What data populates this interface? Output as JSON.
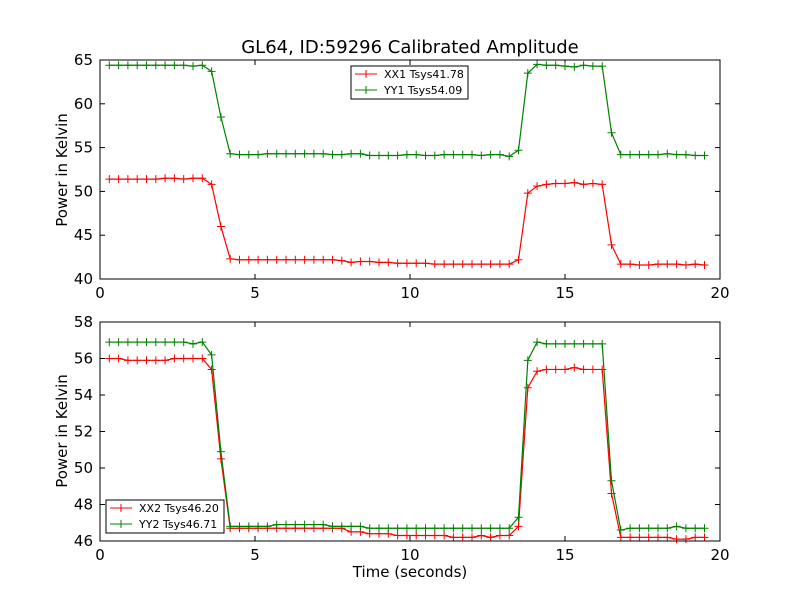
{
  "title": "GL64, ID:59296 Calibrated Amplitude",
  "colors": {
    "red": "#ff0000",
    "green": "#008000"
  },
  "chart_data": [
    {
      "type": "line",
      "ylabel": "Power in Kelvin",
      "xlabel": "",
      "xlim": [
        0,
        20
      ],
      "ylim": [
        40,
        65
      ],
      "xticks": [
        "0",
        "5",
        "10",
        "15",
        "20"
      ],
      "yticks": [
        "40",
        "45",
        "50",
        "55",
        "60",
        "65"
      ],
      "legend": "top-center",
      "x": [
        0.3,
        0.6,
        0.9,
        1.2,
        1.5,
        1.8,
        2.1,
        2.4,
        2.7,
        3.0,
        3.3,
        3.6,
        3.9,
        4.2,
        4.5,
        4.8,
        5.1,
        5.4,
        5.7,
        6.0,
        6.3,
        6.6,
        6.9,
        7.2,
        7.5,
        7.8,
        8.1,
        8.4,
        8.7,
        9.0,
        9.3,
        9.6,
        9.9,
        10.2,
        10.5,
        10.8,
        11.1,
        11.4,
        11.7,
        12.0,
        12.3,
        12.6,
        12.9,
        13.2,
        13.5,
        13.8,
        14.1,
        14.4,
        14.7,
        15.0,
        15.3,
        15.6,
        15.9,
        16.2,
        16.5,
        16.8,
        17.1,
        17.4,
        17.7,
        18.0,
        18.3,
        18.6,
        18.9,
        19.2,
        19.5
      ],
      "series": [
        {
          "name": "XX1 Tsys41.78",
          "color": "#ff0000",
          "values": [
            51.4,
            51.4,
            51.4,
            51.4,
            51.4,
            51.4,
            51.5,
            51.5,
            51.4,
            51.5,
            51.5,
            50.8,
            46.0,
            42.3,
            42.2,
            42.2,
            42.2,
            42.2,
            42.2,
            42.2,
            42.2,
            42.2,
            42.2,
            42.2,
            42.2,
            42.1,
            41.9,
            42.0,
            42.0,
            41.9,
            41.9,
            41.8,
            41.8,
            41.8,
            41.8,
            41.7,
            41.7,
            41.7,
            41.7,
            41.7,
            41.7,
            41.7,
            41.7,
            41.7,
            42.2,
            49.8,
            50.6,
            50.8,
            50.9,
            50.9,
            51.0,
            50.8,
            50.9,
            50.8,
            43.9,
            41.7,
            41.7,
            41.6,
            41.6,
            41.7,
            41.7,
            41.7,
            41.6,
            41.7,
            41.6
          ]
        },
        {
          "name": "YY1 Tsys54.09",
          "color": "#008000",
          "values": [
            64.4,
            64.4,
            64.4,
            64.4,
            64.4,
            64.4,
            64.4,
            64.4,
            64.4,
            64.3,
            64.4,
            63.7,
            58.5,
            54.3,
            54.2,
            54.2,
            54.2,
            54.3,
            54.3,
            54.3,
            54.3,
            54.3,
            54.3,
            54.3,
            54.2,
            54.2,
            54.3,
            54.3,
            54.1,
            54.1,
            54.1,
            54.1,
            54.2,
            54.2,
            54.1,
            54.1,
            54.2,
            54.2,
            54.2,
            54.2,
            54.1,
            54.2,
            54.2,
            54.0,
            54.7,
            63.5,
            64.5,
            64.4,
            64.4,
            64.3,
            64.2,
            64.4,
            64.3,
            64.3,
            56.7,
            54.2,
            54.2,
            54.2,
            54.2,
            54.2,
            54.3,
            54.2,
            54.2,
            54.1,
            54.1
          ]
        }
      ]
    },
    {
      "type": "line",
      "ylabel": "Power in Kelvin",
      "xlabel": "Time (seconds)",
      "xlim": [
        0,
        20
      ],
      "ylim": [
        46,
        58
      ],
      "xticks": [
        "0",
        "5",
        "10",
        "15",
        "20"
      ],
      "yticks": [
        "46",
        "48",
        "50",
        "52",
        "54",
        "56",
        "58"
      ],
      "legend": "lower-left",
      "x": [
        0.3,
        0.6,
        0.9,
        1.2,
        1.5,
        1.8,
        2.1,
        2.4,
        2.7,
        3.0,
        3.3,
        3.6,
        3.9,
        4.2,
        4.5,
        4.8,
        5.1,
        5.4,
        5.7,
        6.0,
        6.3,
        6.6,
        6.9,
        7.2,
        7.5,
        7.8,
        8.1,
        8.4,
        8.7,
        9.0,
        9.3,
        9.6,
        9.9,
        10.2,
        10.5,
        10.8,
        11.1,
        11.4,
        11.7,
        12.0,
        12.3,
        12.6,
        12.9,
        13.2,
        13.5,
        13.8,
        14.1,
        14.4,
        14.7,
        15.0,
        15.3,
        15.6,
        15.9,
        16.2,
        16.5,
        16.8,
        17.1,
        17.4,
        17.7,
        18.0,
        18.3,
        18.6,
        18.9,
        19.2,
        19.5
      ],
      "series": [
        {
          "name": "XX2 Tsys46.20",
          "color": "#ff0000",
          "values": [
            56.0,
            56.0,
            55.9,
            55.9,
            55.9,
            55.9,
            55.9,
            56.0,
            56.0,
            56.0,
            56.0,
            55.4,
            50.5,
            46.7,
            46.7,
            46.7,
            46.7,
            46.7,
            46.7,
            46.7,
            46.7,
            46.7,
            46.7,
            46.7,
            46.7,
            46.7,
            46.5,
            46.5,
            46.4,
            46.4,
            46.4,
            46.3,
            46.3,
            46.3,
            46.3,
            46.3,
            46.3,
            46.2,
            46.2,
            46.2,
            46.3,
            46.2,
            46.3,
            46.3,
            46.8,
            54.4,
            55.3,
            55.4,
            55.4,
            55.4,
            55.5,
            55.4,
            55.4,
            55.4,
            48.6,
            46.2,
            46.2,
            46.2,
            46.2,
            46.2,
            46.2,
            46.1,
            46.1,
            46.2,
            46.2
          ]
        },
        {
          "name": "YY2 Tsys46.71",
          "color": "#008000",
          "values": [
            56.9,
            56.9,
            56.9,
            56.9,
            56.9,
            56.9,
            56.9,
            56.9,
            56.9,
            56.8,
            56.9,
            56.2,
            50.9,
            46.8,
            46.8,
            46.8,
            46.8,
            46.8,
            46.9,
            46.9,
            46.9,
            46.9,
            46.9,
            46.9,
            46.8,
            46.8,
            46.8,
            46.8,
            46.7,
            46.7,
            46.7,
            46.7,
            46.7,
            46.7,
            46.7,
            46.7,
            46.7,
            46.7,
            46.7,
            46.7,
            46.7,
            46.7,
            46.7,
            46.7,
            47.3,
            55.9,
            56.9,
            56.8,
            56.8,
            56.8,
            56.8,
            56.8,
            56.8,
            56.8,
            49.3,
            46.6,
            46.7,
            46.7,
            46.7,
            46.7,
            46.7,
            46.8,
            46.7,
            46.7,
            46.7
          ]
        }
      ]
    }
  ]
}
